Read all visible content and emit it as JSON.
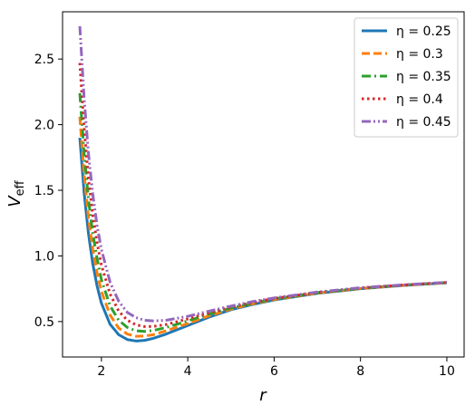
{
  "chart_data": {
    "type": "line",
    "xlabel": "r",
    "ylabel": "V",
    "ylabel_sub": "eff",
    "xlim": [
      1.1,
      10.4
    ],
    "ylim": [
      0.23,
      2.86
    ],
    "xticks": [
      2,
      4,
      6,
      8,
      10
    ],
    "yticks": [
      0.5,
      1.0,
      1.5,
      2.0,
      2.5
    ],
    "xtick_labels": [
      "2",
      "4",
      "6",
      "8",
      "10"
    ],
    "ytick_labels": [
      "0.5",
      "1.0",
      "1.5",
      "2.0",
      "2.5"
    ],
    "grid": false,
    "legend_placement": "top-right",
    "series": [
      {
        "name": "η = 0.25",
        "legend_label": "η = 0.25",
        "eta": 0.25,
        "color": "#1f77b4",
        "dash": "solid",
        "x": [
          1.5,
          1.6,
          1.7,
          1.8,
          1.9,
          2.0,
          2.2,
          2.4,
          2.6,
          2.8,
          3.0,
          3.2,
          3.5,
          4.0,
          4.5,
          5.0,
          5.5,
          6.0,
          7.0,
          8.0,
          9.0,
          10.0
        ],
        "y": [
          1.9,
          1.48,
          1.17,
          0.94,
          0.77,
          0.64,
          0.48,
          0.4,
          0.363,
          0.352,
          0.357,
          0.372,
          0.405,
          0.47,
          0.535,
          0.59,
          0.63,
          0.665,
          0.715,
          0.75,
          0.775,
          0.795
        ]
      },
      {
        "name": "η = 0.3",
        "legend_label": "η = 0.3",
        "eta": 0.3,
        "color": "#ff7f0e",
        "dash": "dashed",
        "x": [
          1.5,
          1.6,
          1.7,
          1.8,
          1.9,
          2.0,
          2.2,
          2.4,
          2.6,
          2.8,
          3.0,
          3.2,
          3.5,
          4.0,
          4.5,
          5.0,
          5.5,
          6.0,
          7.0,
          8.0,
          9.0,
          10.0
        ],
        "y": [
          2.06,
          1.62,
          1.29,
          1.05,
          0.87,
          0.73,
          0.55,
          0.45,
          0.405,
          0.388,
          0.39,
          0.4,
          0.43,
          0.485,
          0.545,
          0.595,
          0.635,
          0.668,
          0.717,
          0.752,
          0.776,
          0.796
        ]
      },
      {
        "name": "η = 0.35",
        "legend_label": "η = 0.35",
        "eta": 0.35,
        "color": "#2ca02c",
        "dash": "dashdot",
        "x": [
          1.5,
          1.6,
          1.7,
          1.8,
          1.9,
          2.0,
          2.2,
          2.4,
          2.6,
          2.8,
          3.0,
          3.2,
          3.5,
          4.0,
          4.5,
          5.0,
          5.5,
          6.0,
          7.0,
          8.0,
          9.0,
          10.0
        ],
        "y": [
          2.24,
          1.78,
          1.43,
          1.17,
          0.98,
          0.82,
          0.62,
          0.51,
          0.455,
          0.43,
          0.425,
          0.432,
          0.455,
          0.505,
          0.558,
          0.603,
          0.64,
          0.672,
          0.72,
          0.754,
          0.778,
          0.797
        ]
      },
      {
        "name": "η = 0.4",
        "legend_label": "η = 0.4",
        "eta": 0.4,
        "color": "#d62728",
        "dash": "dotted",
        "x": [
          1.5,
          1.6,
          1.7,
          1.8,
          1.9,
          2.0,
          2.2,
          2.4,
          2.6,
          2.8,
          3.0,
          3.2,
          3.5,
          4.0,
          4.5,
          5.0,
          5.5,
          6.0,
          7.0,
          8.0,
          9.0,
          10.0
        ],
        "y": [
          2.47,
          1.97,
          1.59,
          1.31,
          1.1,
          0.93,
          0.71,
          0.58,
          0.51,
          0.475,
          0.462,
          0.463,
          0.478,
          0.52,
          0.568,
          0.61,
          0.645,
          0.676,
          0.722,
          0.756,
          0.779,
          0.798
        ]
      },
      {
        "name": "η = 0.45",
        "legend_label": "η = 0.45",
        "eta": 0.45,
        "color": "#9467bd",
        "dash": "dashdotdot",
        "x": [
          1.5,
          1.6,
          1.7,
          1.8,
          1.9,
          2.0,
          2.2,
          2.4,
          2.6,
          2.8,
          3.0,
          3.2,
          3.5,
          4.0,
          4.5,
          5.0,
          5.5,
          6.0,
          7.0,
          8.0,
          9.0,
          10.0
        ],
        "y": [
          2.75,
          2.2,
          1.78,
          1.47,
          1.23,
          1.05,
          0.8,
          0.655,
          0.57,
          0.53,
          0.51,
          0.505,
          0.51,
          0.54,
          0.58,
          0.618,
          0.652,
          0.68,
          0.725,
          0.758,
          0.78,
          0.799
        ]
      }
    ]
  }
}
